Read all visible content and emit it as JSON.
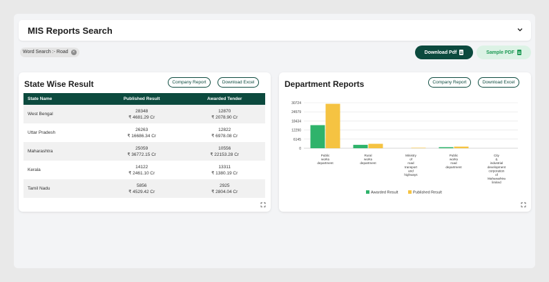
{
  "header": {
    "title": "MIS Reports Search"
  },
  "filter_chip": {
    "label": "Word Search :- Road",
    "close_symbol": "×"
  },
  "toolbar": {
    "download_pdf": "Download Pdf",
    "sample_pdf": "Sample PDF"
  },
  "state_card": {
    "title": "State Wise Result",
    "company_report": "Company Report",
    "download_excel": "Download Excel",
    "columns": [
      "State Name",
      "Published Result",
      "Awarded Tender"
    ],
    "rows": [
      {
        "state": "West Bengal",
        "pub_count": "28348",
        "pub_amount": "₹ 4681.29 Cr",
        "aw_count": "12870",
        "aw_amount": "₹ 2078.90 Cr"
      },
      {
        "state": "Uttar Pradesh",
        "pub_count": "26263",
        "pub_amount": "₹ 16686.34 Cr",
        "aw_count": "12822",
        "aw_amount": "₹ 6978.08 Cr"
      },
      {
        "state": "Maharashtra",
        "pub_count": "25059",
        "pub_amount": "₹ 36772.15 Cr",
        "aw_count": "10556",
        "aw_amount": "₹ 22153.28 Cr"
      },
      {
        "state": "Kerala",
        "pub_count": "14122",
        "pub_amount": "₹ 2461.10 Cr",
        "aw_count": "13311",
        "aw_amount": "₹ 1380.19 Cr"
      },
      {
        "state": "Tamil Nadu",
        "pub_count": "5856",
        "pub_amount": "₹ 4529.42 Cr",
        "aw_count": "2925",
        "aw_amount": "₹ 2804.04 Cr"
      }
    ]
  },
  "dept_card": {
    "title": "Department Reports",
    "company_report": "Company Report",
    "download_excel": "Download Excel"
  },
  "colors": {
    "primary": "#0c4a3e",
    "awarded": "#2fb36b",
    "published": "#f5c342",
    "sample_bg": "#dcf2e5"
  },
  "chart_data": {
    "type": "bar",
    "categories": [
      [
        "Public",
        "works",
        "department"
      ],
      [
        "Rural",
        "works",
        "department"
      ],
      [
        "Ministry",
        "of",
        "road",
        "transport",
        "and",
        "highways"
      ],
      [
        "Public",
        "works",
        "road",
        "department"
      ],
      [
        "City",
        "&",
        "industrial",
        "development",
        "corporation",
        "of",
        "Maharashtra",
        "limited"
      ]
    ],
    "series": [
      {
        "name": "Awarded Result",
        "color": "#2fb36b",
        "values": [
          15600,
          2300,
          0,
          700,
          0
        ]
      },
      {
        "name": "Published Result",
        "color": "#f5c342",
        "values": [
          30000,
          3000,
          300,
          1100,
          0
        ]
      }
    ],
    "y_ticks": [
      "30724",
      "24579",
      "18434",
      "12290",
      "6145",
      "0"
    ],
    "ylim": [
      0,
      30724
    ],
    "grid": true,
    "legend": "bottom"
  }
}
